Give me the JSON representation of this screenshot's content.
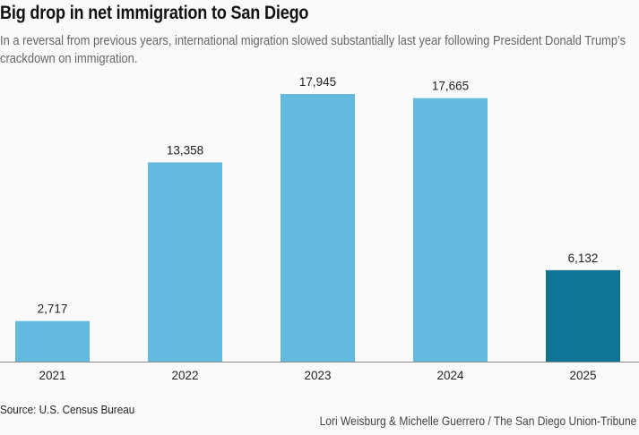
{
  "chart_data": {
    "type": "bar",
    "title": "Big drop in net immigration to San Diego",
    "subtitle": "In a reversal from previous years, international migration slowed substantially last year following President Donald Trump’s crackdown on immigration.",
    "categories": [
      "2021",
      "2022",
      "2023",
      "2024",
      "2025"
    ],
    "values": [
      2717,
      13358,
      17945,
      17665,
      6132
    ],
    "value_labels": [
      "2,717",
      "13,358",
      "17,945",
      "17,665",
      "6,132"
    ],
    "highlight_index": 4,
    "colors": {
      "default": "#64bade",
      "highlight": "#107494"
    },
    "xlabel": "",
    "ylabel": "",
    "ylim": [
      0,
      18000
    ],
    "grid": false,
    "source": "Source: U.S. Census Bureau",
    "credit": "Lori Weisburg & Michelle Guerrero / The San Diego Union-Tribune"
  }
}
